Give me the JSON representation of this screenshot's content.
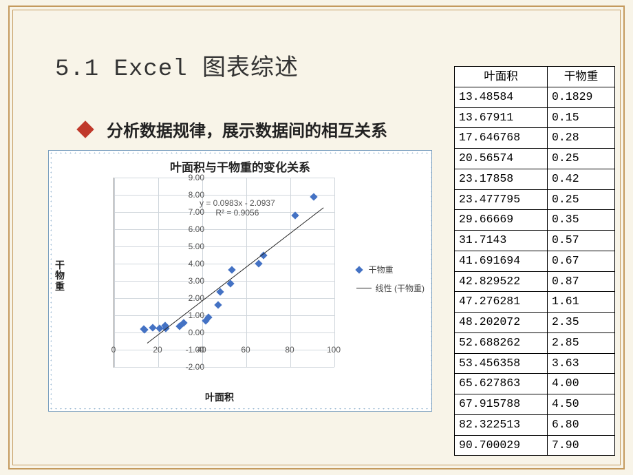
{
  "slide": {
    "title": "5.1 Excel 图表综述",
    "bullet": "分析数据规律，展示数据间的相互关系",
    "bullet_color": "#c0392b"
  },
  "table": {
    "headers": [
      "叶面积",
      "干物重"
    ],
    "rows": [
      [
        "13.48584",
        "0.1829"
      ],
      [
        "13.67911",
        "0.15"
      ],
      [
        "17.646768",
        "0.28"
      ],
      [
        "20.56574",
        "0.25"
      ],
      [
        "23.17858",
        "0.42"
      ],
      [
        "23.477795",
        "0.25"
      ],
      [
        "29.66669",
        "0.35"
      ],
      [
        "31.7143",
        "0.57"
      ],
      [
        "41.691694",
        "0.67"
      ],
      [
        "42.829522",
        "0.87"
      ],
      [
        "47.276281",
        "1.61"
      ],
      [
        "48.202072",
        "2.35"
      ],
      [
        "52.688262",
        "2.85"
      ],
      [
        "53.456358",
        "3.63"
      ],
      [
        "65.627863",
        "4.00"
      ],
      [
        "67.915788",
        "4.50"
      ],
      [
        "82.322513",
        "6.80"
      ],
      [
        "90.700029",
        "7.90"
      ]
    ]
  },
  "chart": {
    "type": "scatter",
    "title": "叶面积与干物重的变化关系",
    "title_fontsize": 17,
    "xlabel": "叶面积",
    "ylabel": "干物重",
    "label_fontsize": 14,
    "xlim": [
      0,
      100
    ],
    "ylim": [
      -2.0,
      9.0
    ],
    "xtick_step": 20,
    "ytick_step": 1.0,
    "x_ticks": [
      0,
      20,
      40,
      60,
      80,
      100
    ],
    "y_ticks": [
      "-2.00",
      "-1.00",
      "0.00",
      "1.00",
      "2.00",
      "3.00",
      "4.00",
      "5.00",
      "6.00",
      "7.00",
      "8.00",
      "9.00"
    ],
    "marker_color": "#4472c4",
    "marker_shape": "diamond",
    "marker_size": 8,
    "grid_color": "#d0d6dc",
    "background_color": "#ffffff",
    "border_color": "#7b9fbf",
    "dot_backdrop": "#9bb9d3",
    "trendline": {
      "color": "#000000",
      "width": 1,
      "equation": "y = 0.0983x - 2.0937",
      "r2": "R² = 0.9056"
    },
    "legend": {
      "items": [
        {
          "marker": "diamond",
          "color": "#4472c4",
          "label": "干物重"
        },
        {
          "marker": "line",
          "color": "#000000",
          "label": "线性 (干物重)"
        }
      ]
    },
    "data_x": [
      13.48584,
      13.67911,
      17.646768,
      20.56574,
      23.17858,
      23.477795,
      29.66669,
      31.7143,
      41.691694,
      42.829522,
      47.276281,
      48.202072,
      52.688262,
      53.456358,
      65.627863,
      67.915788,
      82.322513,
      90.700029
    ],
    "data_y": [
      0.1829,
      0.15,
      0.28,
      0.25,
      0.42,
      0.25,
      0.35,
      0.57,
      0.67,
      0.87,
      1.61,
      2.35,
      2.85,
      3.63,
      4.0,
      4.5,
      6.8,
      7.9
    ]
  }
}
